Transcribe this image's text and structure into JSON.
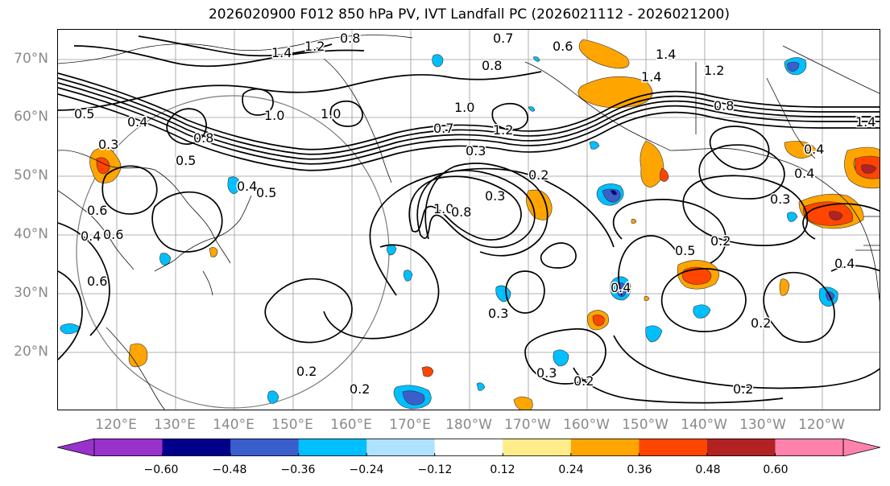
{
  "title": "2026020900 F012 850 hPa PV, IVT Landfall PC (2026021112 - 2026021200)",
  "lat_labels": [
    "70°N",
    "60°N",
    "50°N",
    "40°N",
    "30°N",
    "20°N"
  ],
  "lon_labels": [
    "120°E",
    "130°E",
    "140°E",
    "150°E",
    "160°E",
    "170°E",
    "180°W",
    "170°W",
    "160°W",
    "150°W",
    "140°W",
    "130°W",
    "120°W"
  ],
  "contour_labels": [
    "0.8",
    "1.4",
    "1.2",
    "0.7",
    "0.6",
    "0.8",
    "1.4",
    "1.4",
    "1.2",
    "0.5",
    "0.4",
    "1.0",
    "1.0",
    "1.0",
    "0.7",
    "1.2",
    "0.8",
    "1.4",
    "0.3",
    "0.5",
    "0.8",
    "0.3",
    "0.2",
    "0.4",
    "0.4",
    "0.6",
    "1.0",
    "0.8",
    "0.5",
    "0.4",
    "0.3",
    "0.6",
    "0.3",
    "0.5",
    "0.2",
    "0.4",
    "0.6",
    "0.4",
    "0.3",
    "0.2",
    "0.3",
    "0.2",
    "0.2",
    "0.2",
    "0.4",
    "0.2"
  ],
  "colorbar": {
    "ticks": [
      "−0.60",
      "−0.48",
      "−0.36",
      "−0.24",
      "−0.12",
      "0.12",
      "0.24",
      "0.36",
      "0.48",
      "0.60"
    ],
    "colors": [
      "#9932cc",
      "#00008b",
      "#3a5fcd",
      "#00bfff",
      "#b0e2ff",
      "#ffffff",
      "#ffec8b",
      "#ffa500",
      "#ff4500",
      "#b22222",
      "#ff82ab",
      "#ff82ab"
    ],
    "under_color": "#9932cc",
    "over_color": "#ff82ab"
  }
}
